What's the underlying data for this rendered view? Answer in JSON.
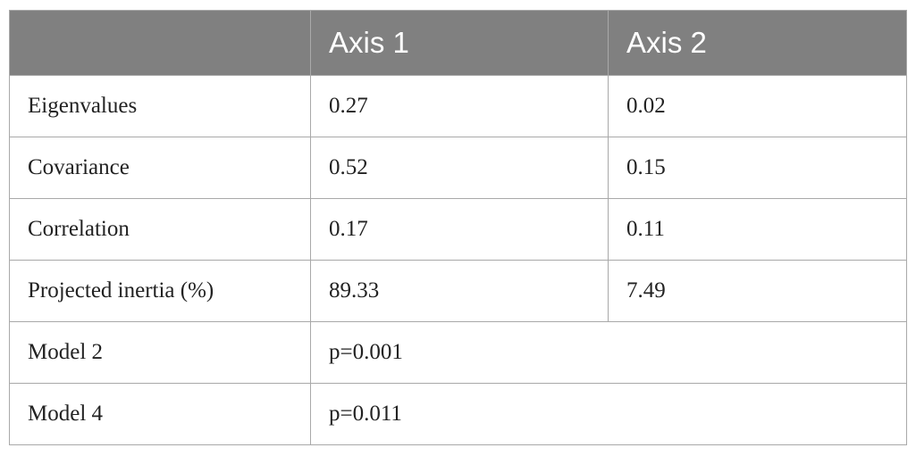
{
  "table": {
    "headers": [
      "",
      "Axis 1",
      "Axis 2"
    ],
    "rows": [
      {
        "label": "Eigenvalues",
        "axis1": "0.27",
        "axis2": "0.02"
      },
      {
        "label": "Covariance",
        "axis1": "0.52",
        "axis2": "0.15"
      },
      {
        "label": "Correlation",
        "axis1": "0.17",
        "axis2": "0.11"
      },
      {
        "label": "Projected inertia (%)",
        "axis1": "89.33",
        "axis2": "7.49"
      },
      {
        "label": "Model 2",
        "value": "p=0.001"
      },
      {
        "label": "Model 4",
        "value": "p=0.011"
      }
    ]
  },
  "colors": {
    "header_bg": "#808080",
    "header_text": "#ffffff",
    "border": "#a9a9a9"
  }
}
